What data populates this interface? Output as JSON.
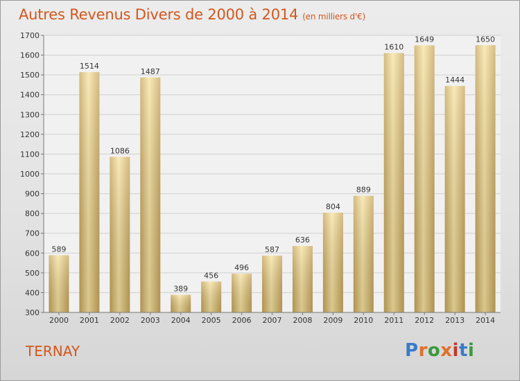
{
  "header": {
    "title": "Autres Revenus Divers de 2000 à 2014",
    "unit": "(en milliers d'€)"
  },
  "footer": {
    "commune": "TERNAY",
    "logo": "Proxiti",
    "logo_colors": [
      "#3a7bc8",
      "#e0702a",
      "#3a9a3a",
      "#e0702a",
      "#c0392b",
      "#3a7bc8",
      "#3a9a3a"
    ]
  },
  "colors": {
    "title": "#d2571c",
    "bar_light": "#f7e3a2",
    "bar_dark": "#c7a55a"
  },
  "chart_data": {
    "type": "bar",
    "categories": [
      "2000",
      "2001",
      "2002",
      "2003",
      "2004",
      "2005",
      "2006",
      "2007",
      "2008",
      "2009",
      "2010",
      "2011",
      "2012",
      "2013",
      "2014"
    ],
    "values": [
      589,
      1514,
      1086,
      1487,
      389,
      456,
      496,
      587,
      636,
      804,
      889,
      1610,
      1649,
      1444,
      1650
    ],
    "ylim": [
      300,
      1700
    ],
    "yticks": [
      300,
      400,
      500,
      600,
      700,
      800,
      900,
      1000,
      1100,
      1200,
      1300,
      1400,
      1500,
      1600,
      1700
    ],
    "grid": true,
    "title": "Autres Revenus Divers de 2000 à 2014",
    "xlabel": "",
    "ylabel": ""
  }
}
